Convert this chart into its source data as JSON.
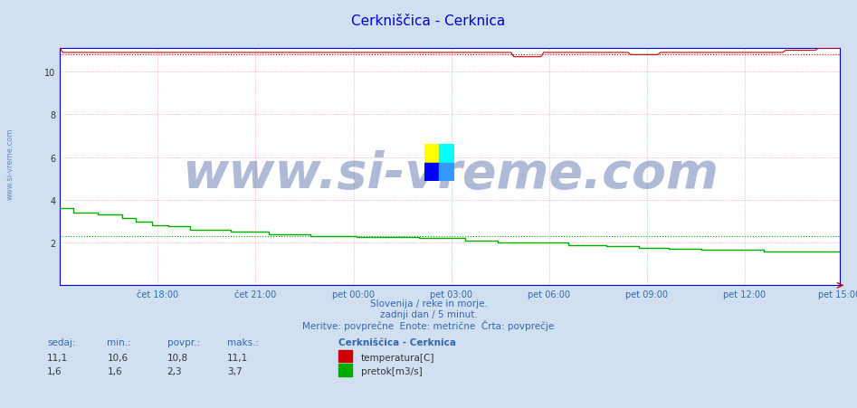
{
  "title": "Cerkniščica - Cerknica",
  "title_color": "#0000cc",
  "bg_color": "#d0e0f0",
  "plot_bg_color": "#ffffff",
  "subtitle_lines": [
    "Slovenija / reke in morje.",
    "zadnji dan / 5 minut.",
    "Meritve: povprečne  Enote: metrične  Črta: povprečje"
  ],
  "xlabel_ticks": [
    "čet 18:00",
    "čet 21:00",
    "pet 00:00",
    "pet 03:00",
    "pet 06:00",
    "pet 09:00",
    "pet 12:00",
    "pet 15:00"
  ],
  "ylim": [
    0,
    11.1
  ],
  "yticks": [
    2,
    4,
    6,
    8,
    10
  ],
  "grid_color_major": "#ff8888",
  "temp_color": "#cc0000",
  "flow_color": "#00aa00",
  "watermark_text": "www.si-vreme.com",
  "watermark_color": "#1a3a8a",
  "watermark_alpha": 0.35,
  "watermark_fontsize": 40,
  "sidebar_text": "www.si-vreme.com",
  "sidebar_color": "#3366aa",
  "legend_title": "Cerkniščica - Cerknica",
  "legend_temp_label": "temperatura[C]",
  "legend_flow_label": "pretok[m3/s]",
  "stats_headers": [
    "sedaj:",
    "min.:",
    "povpr.:",
    "maks.:"
  ],
  "stats_temp": [
    "11,1",
    "10,6",
    "10,8",
    "11,1"
  ],
  "stats_flow": [
    "1,6",
    "1,6",
    "2,3",
    "3,7"
  ],
  "avg_temp": 10.8,
  "avg_flow": 2.3,
  "n_points": 288
}
